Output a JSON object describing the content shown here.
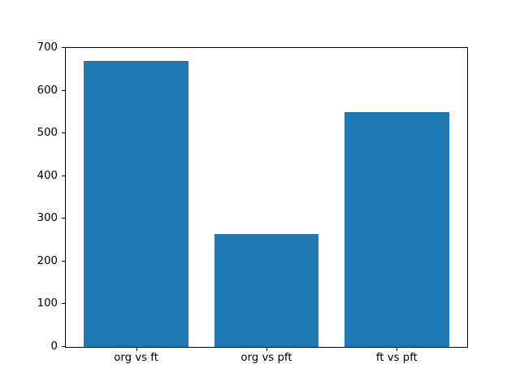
{
  "chart_data": {
    "type": "bar",
    "categories": [
      "org vs ft",
      "org vs pft",
      "ft vs pft"
    ],
    "values": [
      670,
      265,
      550
    ],
    "yticks": [
      0,
      100,
      200,
      300,
      400,
      500,
      600,
      700
    ],
    "ylim": [
      0,
      700
    ],
    "xlim": [
      -0.54,
      2.54
    ],
    "bar_width_units": 0.8,
    "bar_color": "#1f77b4",
    "axis_color": "#000000",
    "background_color": "#ffffff",
    "grid": false,
    "legend": "none",
    "title": ""
  }
}
